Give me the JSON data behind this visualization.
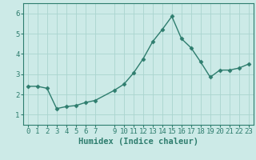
{
  "x": [
    0,
    1,
    2,
    3,
    4,
    5,
    6,
    7,
    9,
    10,
    11,
    12,
    13,
    14,
    15,
    16,
    17,
    18,
    19,
    20,
    21,
    22,
    23
  ],
  "y": [
    2.4,
    2.4,
    2.3,
    1.3,
    1.4,
    1.45,
    1.6,
    1.7,
    2.2,
    2.5,
    3.05,
    3.75,
    4.6,
    5.2,
    5.85,
    4.75,
    4.3,
    3.6,
    2.85,
    3.2,
    3.2,
    3.3,
    3.5
  ],
  "line_color": "#2e7d6e",
  "marker": "D",
  "marker_size": 2.5,
  "bg_color": "#cceae7",
  "grid_color": "#aad4cf",
  "xlabel": "Humidex (Indice chaleur)",
  "xlim": [
    -0.5,
    23.5
  ],
  "ylim": [
    0.5,
    6.5
  ],
  "yticks": [
    1,
    2,
    3,
    4,
    5,
    6
  ],
  "xticks": [
    0,
    1,
    2,
    3,
    4,
    5,
    6,
    7,
    9,
    10,
    11,
    12,
    13,
    14,
    15,
    16,
    17,
    18,
    19,
    20,
    21,
    22,
    23
  ],
  "xlabel_fontsize": 7.5,
  "tick_fontsize": 6.5,
  "axis_color": "#2e7d6e",
  "line_width": 1.0
}
